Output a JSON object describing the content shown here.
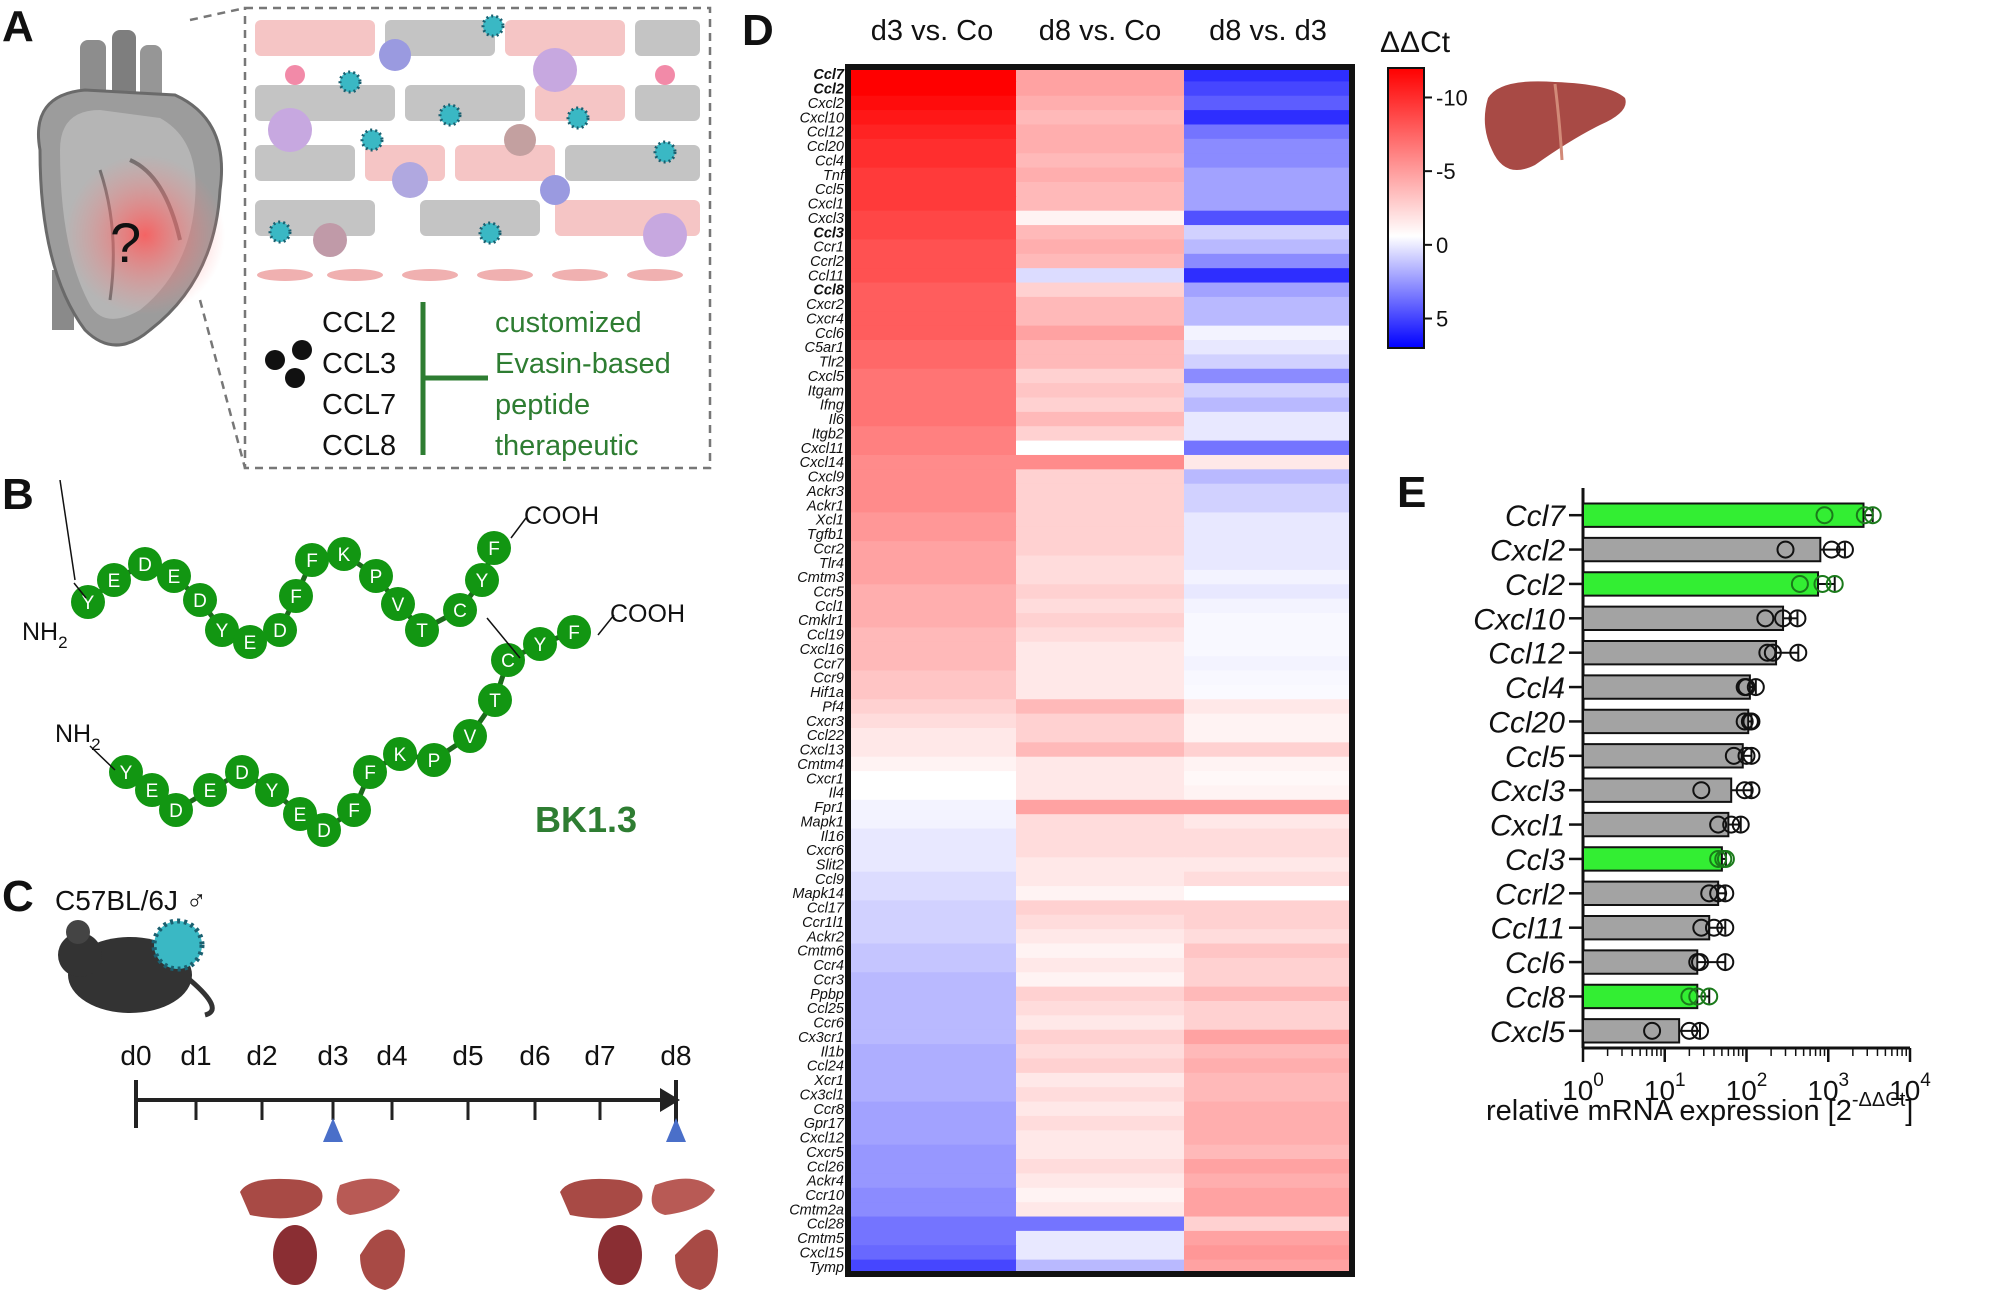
{
  "panel_letters": {
    "a": "A",
    "b": "B",
    "c": "C",
    "d": "D",
    "e": "E"
  },
  "panel_a": {
    "question_mark": "?",
    "chemokines": [
      "CCL2",
      "CCL3",
      "CCL7",
      "CCL8"
    ],
    "therapeutic_lines": [
      "customized",
      "Evasin-based",
      "peptide",
      "therapeutic"
    ]
  },
  "panel_b": {
    "chain1": [
      "Y",
      "E",
      "D",
      "E",
      "D",
      "Y",
      "E",
      "D",
      "F",
      "F",
      "K",
      "P",
      "V",
      "T",
      "C",
      "Y",
      "F"
    ],
    "chain2": [
      "Y",
      "E",
      "D",
      "E",
      "D",
      "Y",
      "E",
      "D",
      "F",
      "F",
      "K",
      "P",
      "V",
      "T",
      "C",
      "Y",
      "F"
    ],
    "nh2_label": "NH",
    "nh2_sub": "2",
    "cooh_label": "COOH",
    "name": "BK1.3"
  },
  "panel_c": {
    "strain": "C57BL/6J ♂",
    "days": [
      "d0",
      "d1",
      "d2",
      "d3",
      "d4",
      "d5",
      "d6",
      "d7",
      "d8"
    ]
  },
  "chart_data": [
    {
      "type": "heatmap",
      "title": "",
      "columns": [
        "d3 vs. Co",
        "d8 vs. Co",
        "d8 vs. d3"
      ],
      "rows": [
        "Ccl7",
        "Ccl2",
        "Cxcl2",
        "Cxcl10",
        "Ccl12",
        "Ccl20",
        "Ccl4",
        "Tnf",
        "Ccl5",
        "Cxcl1",
        "Cxcl3",
        "Ccl3",
        "Ccr1",
        "Ccrl2",
        "Ccl11",
        "Ccl8",
        "Cxcr2",
        "Cxcr4",
        "Ccl6",
        "C5ar1",
        "Tlr2",
        "Cxcl5",
        "Itgam",
        "Ifng",
        "Il6",
        "Itgb2",
        "Cxcl11",
        "Cxcl14",
        "Cxcl9",
        "Ackr3",
        "Ackr1",
        "Xcl1",
        "Tgfb1",
        "Ccr2",
        "Tlr4",
        "Cmtm3",
        "Ccr5",
        "Ccl1",
        "Cmklr1",
        "Ccl19",
        "Cxcl16",
        "Ccr7",
        "Ccr9",
        "Hif1a",
        "Pf4",
        "Cxcr3",
        "Ccl22",
        "Cxcl13",
        "Cmtm4",
        "Cxcr1",
        "Il4",
        "Fpr1",
        "Mapk1",
        "Il16",
        "Cxcr6",
        "Slit2",
        "Ccl9",
        "Mapk14",
        "Ccl17",
        "Ccr1l1",
        "Ackr2",
        "Cmtm6",
        "Ccr4",
        "Ccr3",
        "Ppbp",
        "Ccl25",
        "Ccr6",
        "Cx3cr1",
        "Il1b",
        "Ccl24",
        "Xcr1",
        "Cx3cl1",
        "Ccr8",
        "Gpr17",
        "Cxcl12",
        "Cxcr5",
        "Ccl26",
        "Ackr4",
        "Ccr10",
        "Cmtm2a",
        "Ccl28",
        "Cmtm5",
        "Cxcl15",
        "Tymp"
      ],
      "bold_rows": [
        "Ccl7",
        "Ccl2",
        "Ccl3",
        "Ccl8"
      ],
      "values": [
        [
          -11,
          -4,
          9
        ],
        [
          -11,
          -4,
          8
        ],
        [
          -10.5,
          -3.5,
          7
        ],
        [
          -10,
          -3,
          9
        ],
        [
          -9.5,
          -3.5,
          6
        ],
        [
          -9,
          -3.5,
          5
        ],
        [
          -9,
          -3,
          5
        ],
        [
          -8.5,
          -3.5,
          4
        ],
        [
          -8.5,
          -3,
          4
        ],
        [
          -8.5,
          -3,
          4
        ],
        [
          -8,
          -0.5,
          7.5
        ],
        [
          -8,
          -3,
          2
        ],
        [
          -7.5,
          -3.5,
          3
        ],
        [
          -7.5,
          -3,
          5
        ],
        [
          -7.5,
          1.5,
          9
        ],
        [
          -7,
          -2,
          4
        ],
        [
          -7,
          -3,
          3
        ],
        [
          -7,
          -3,
          3
        ],
        [
          -7,
          -4,
          0.5
        ],
        [
          -6.5,
          -3,
          1
        ],
        [
          -6.5,
          -3,
          2
        ],
        [
          -6,
          -2,
          5
        ],
        [
          -6,
          -2.5,
          2
        ],
        [
          -6,
          -2,
          3
        ],
        [
          -6,
          -3,
          1
        ],
        [
          -5.5,
          -2,
          1
        ],
        [
          -5.5,
          0,
          6
        ],
        [
          -5,
          -5,
          -1
        ],
        [
          -5,
          -2,
          3
        ],
        [
          -5,
          -2,
          2
        ],
        [
          -5,
          -2,
          2
        ],
        [
          -4.5,
          -2,
          1
        ],
        [
          -4.5,
          -2,
          1
        ],
        [
          -4,
          -2,
          1
        ],
        [
          -4,
          -1.5,
          1
        ],
        [
          -4,
          -1.5,
          0.5
        ],
        [
          -3.5,
          -2,
          1
        ],
        [
          -3.5,
          -1.5,
          0.5
        ],
        [
          -3.5,
          -2,
          0.3
        ],
        [
          -3,
          -1.5,
          0.3
        ],
        [
          -3,
          -1,
          0.3
        ],
        [
          -3,
          -1,
          0.5
        ],
        [
          -2.5,
          -1,
          0.3
        ],
        [
          -2.5,
          -1,
          0.2
        ],
        [
          -2,
          -3,
          -1
        ],
        [
          -1.5,
          -2,
          -0.5
        ],
        [
          -1,
          -2,
          -0.5
        ],
        [
          -1,
          -3,
          -2
        ],
        [
          -0.5,
          -1,
          -0.5
        ],
        [
          0,
          -1,
          -0.3
        ],
        [
          0,
          -1,
          -0.5
        ],
        [
          0.5,
          -4,
          -4
        ],
        [
          0.5,
          -1.5,
          -1
        ],
        [
          1,
          -1.5,
          -1.5
        ],
        [
          1,
          -1.5,
          -1.5
        ],
        [
          1,
          -1,
          -1
        ],
        [
          1.5,
          -1,
          -1.5
        ],
        [
          1.5,
          -0.5,
          0
        ],
        [
          2,
          -2,
          -2
        ],
        [
          2,
          -1.5,
          -2
        ],
        [
          2,
          -1,
          -1.5
        ],
        [
          2.5,
          -0.5,
          -2.5
        ],
        [
          2.5,
          -1,
          -2
        ],
        [
          3,
          -0.5,
          -2
        ],
        [
          3,
          -2,
          -3
        ],
        [
          3,
          -1.5,
          -2
        ],
        [
          3,
          -1,
          -2
        ],
        [
          3,
          -2,
          -4
        ],
        [
          3.5,
          -1.5,
          -3
        ],
        [
          3.5,
          -2,
          -3.5
        ],
        [
          3.5,
          -1,
          -3
        ],
        [
          3.5,
          -1.5,
          -3
        ],
        [
          4,
          -1,
          -3.5
        ],
        [
          4,
          -1.5,
          -3.5
        ],
        [
          4,
          -1,
          -3.5
        ],
        [
          4.5,
          -1,
          -3
        ],
        [
          4.5,
          -1.5,
          -4
        ],
        [
          4.5,
          -1,
          -3.5
        ],
        [
          5,
          -0.5,
          -4
        ],
        [
          5,
          -1,
          -4
        ],
        [
          6,
          6,
          -2
        ],
        [
          6,
          1,
          -4
        ],
        [
          6.5,
          1,
          -4.5
        ],
        [
          8,
          3,
          -4
        ]
      ],
      "colorbar": {
        "title": "ΔΔCt",
        "range": [
          7,
          -12
        ],
        "ticks": [
          {
            "v": -10,
            "label": "-10"
          },
          {
            "v": -5,
            "label": "-5"
          },
          {
            "v": 0,
            "label": "0"
          },
          {
            "v": 5,
            "label": "5"
          }
        ]
      }
    },
    {
      "type": "bar",
      "orientation": "horizontal",
      "title": "",
      "xlabel": "relative mRNA expression [2",
      "xlabel_sup": "-ΔΔCt",
      "xlabel_end": "]",
      "xscale": "log",
      "xlim": [
        1,
        10000
      ],
      "x_ticks": [
        {
          "v": 1,
          "base": "10",
          "exp": "0"
        },
        {
          "v": 10,
          "base": "10",
          "exp": "1"
        },
        {
          "v": 100,
          "base": "10",
          "exp": "2"
        },
        {
          "v": 1000,
          "base": "10",
          "exp": "3"
        },
        {
          "v": 10000,
          "base": "10",
          "exp": "4"
        }
      ],
      "categories": [
        "Ccl7",
        "Cxcl2",
        "Ccl2",
        "Cxcl10",
        "Ccl12",
        "Ccl4",
        "Ccl20",
        "Ccl5",
        "Cxcl3",
        "Cxcl1",
        "Ccl3",
        "Ccrl2",
        "Ccl11",
        "Ccl6",
        "Ccl8",
        "Cxcl5"
      ],
      "values": [
        2700,
        800,
        750,
        280,
        230,
        110,
        105,
        90,
        65,
        60,
        50,
        45,
        35,
        25,
        25,
        15
      ],
      "highlight": [
        true,
        false,
        true,
        false,
        false,
        false,
        false,
        false,
        false,
        false,
        true,
        false,
        false,
        false,
        true,
        false
      ],
      "points": [
        [
          900,
          2800,
          3500
        ],
        [
          300,
          1100,
          1600
        ],
        [
          450,
          850,
          1200
        ],
        [
          170,
          280,
          420
        ],
        [
          180,
          210,
          430
        ],
        [
          95,
          100,
          130
        ],
        [
          95,
          110,
          115
        ],
        [
          70,
          100,
          115
        ],
        [
          28,
          95,
          115
        ],
        [
          45,
          65,
          85
        ],
        [
          45,
          52,
          56
        ],
        [
          35,
          45,
          55
        ],
        [
          28,
          40,
          55
        ],
        [
          25,
          27,
          55
        ],
        [
          20,
          25,
          35
        ],
        [
          7,
          20,
          27
        ]
      ],
      "colors": {
        "highlight": "#33ee33",
        "normal": "#a3a3a3"
      }
    }
  ]
}
